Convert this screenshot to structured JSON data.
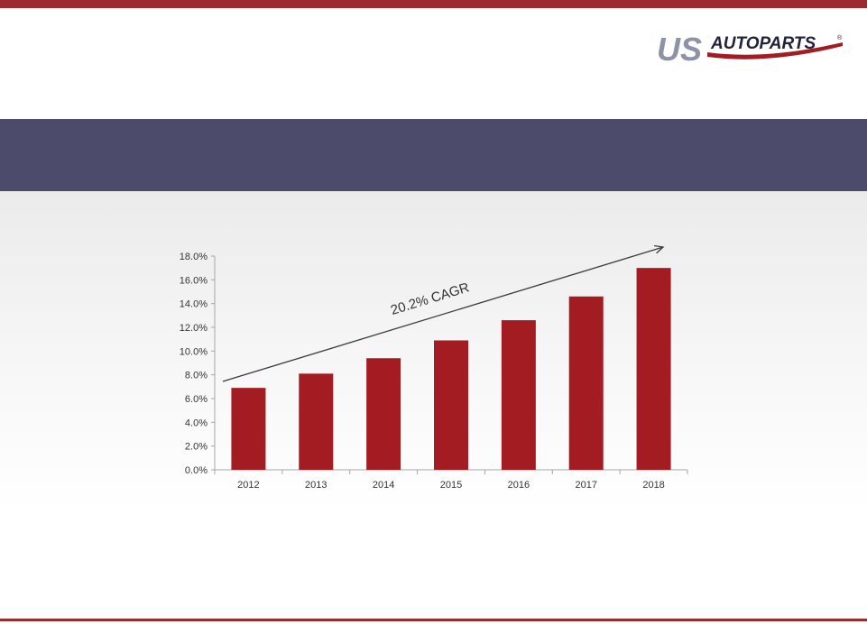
{
  "brand": {
    "logo_text_us": "US",
    "logo_text_auto": "AUTOPARTS",
    "logo_mark": "®"
  },
  "colors": {
    "accent": "#9e2a2f",
    "band": "#4d4b6b",
    "bar": "#a21c22",
    "logo_gray": "#8d93a6"
  },
  "chart_data": {
    "type": "bar",
    "categories": [
      "2012",
      "2013",
      "2014",
      "2015",
      "2016",
      "2017",
      "2018"
    ],
    "values": [
      6.9,
      8.1,
      9.4,
      10.9,
      12.6,
      14.6,
      17.0
    ],
    "ylim": [
      0,
      18
    ],
    "yticks": [
      "0.0%",
      "2.0%",
      "4.0%",
      "6.0%",
      "8.0%",
      "10.0%",
      "12.0%",
      "14.0%",
      "16.0%",
      "18.0%"
    ],
    "grid": false,
    "annotation": "20.2% CAGR"
  }
}
